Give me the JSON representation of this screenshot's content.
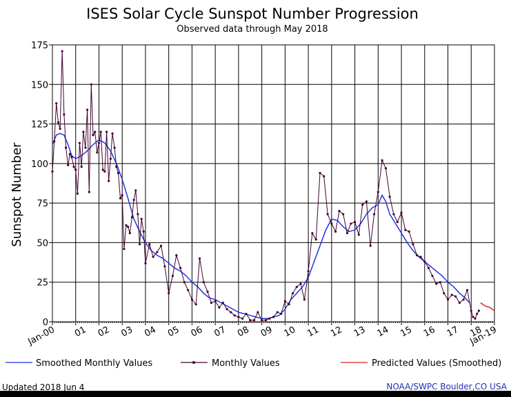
{
  "chart_data": {
    "type": "line",
    "title": "ISES Solar Cycle Sunspot Number Progression",
    "subtitle": "Observed data through May 2018",
    "ylabel": "Sunspot Number",
    "xlabel": "",
    "ylim": [
      0,
      175
    ],
    "xlim": [
      2000.0,
      2019.0
    ],
    "y_ticks": [
      0,
      25,
      50,
      75,
      100,
      125,
      150,
      175
    ],
    "x_tick_labels": [
      {
        "x": 2000,
        "label": "Jan-00"
      },
      {
        "x": 2001,
        "label": "01"
      },
      {
        "x": 2002,
        "label": "02"
      },
      {
        "x": 2003,
        "label": "03"
      },
      {
        "x": 2004,
        "label": "04"
      },
      {
        "x": 2005,
        "label": "05"
      },
      {
        "x": 2006,
        "label": "06"
      },
      {
        "x": 2007,
        "label": "07"
      },
      {
        "x": 2008,
        "label": "08"
      },
      {
        "x": 2009,
        "label": "09"
      },
      {
        "x": 2010,
        "label": "10"
      },
      {
        "x": 2011,
        "label": "11"
      },
      {
        "x": 2012,
        "label": "12"
      },
      {
        "x": 2013,
        "label": "13"
      },
      {
        "x": 2014,
        "label": "14"
      },
      {
        "x": 2015,
        "label": "15"
      },
      {
        "x": 2016,
        "label": "16"
      },
      {
        "x": 2017,
        "label": "17"
      },
      {
        "x": 2018,
        "label": "18"
      },
      {
        "x": 2019,
        "label": "Jan-19"
      }
    ],
    "grid": true,
    "legend_position": "bottom",
    "series": [
      {
        "name": "Monthly Values",
        "color": "#400030",
        "marker": "dot",
        "x": [
          2000.0,
          2000.08,
          2000.17,
          2000.25,
          2000.33,
          2000.42,
          2000.5,
          2000.58,
          2000.67,
          2000.75,
          2000.83,
          2000.92,
          2001.0,
          2001.08,
          2001.17,
          2001.25,
          2001.33,
          2001.42,
          2001.5,
          2001.58,
          2001.67,
          2001.75,
          2001.83,
          2001.92,
          2002.0,
          2002.08,
          2002.17,
          2002.25,
          2002.33,
          2002.42,
          2002.5,
          2002.58,
          2002.67,
          2002.75,
          2002.83,
          2002.92,
          2003.0,
          2003.08,
          2003.17,
          2003.25,
          2003.33,
          2003.42,
          2003.5,
          2003.58,
          2003.67,
          2003.75,
          2003.83,
          2003.92,
          2004.0,
          2004.17,
          2004.33,
          2004.5,
          2004.67,
          2004.83,
          2005.0,
          2005.17,
          2005.33,
          2005.5,
          2005.67,
          2005.83,
          2006.0,
          2006.17,
          2006.33,
          2006.5,
          2006.67,
          2006.83,
          2007.0,
          2007.17,
          2007.33,
          2007.5,
          2007.67,
          2007.83,
          2008.0,
          2008.17,
          2008.33,
          2008.5,
          2008.67,
          2008.83,
          2009.0,
          2009.17,
          2009.33,
          2009.5,
          2009.67,
          2009.83,
          2010.0,
          2010.17,
          2010.33,
          2010.5,
          2010.67,
          2010.83,
          2011.0,
          2011.17,
          2011.33,
          2011.5,
          2011.67,
          2011.83,
          2012.0,
          2012.17,
          2012.33,
          2012.5,
          2012.67,
          2012.83,
          2013.0,
          2013.17,
          2013.33,
          2013.5,
          2013.67,
          2013.83,
          2014.0,
          2014.17,
          2014.33,
          2014.5,
          2014.67,
          2014.83,
          2015.0,
          2015.17,
          2015.33,
          2015.5,
          2015.67,
          2015.83,
          2016.0,
          2016.17,
          2016.33,
          2016.5,
          2016.67,
          2016.83,
          2017.0,
          2017.17,
          2017.33,
          2017.5,
          2017.67,
          2017.83,
          2018.0,
          2018.08,
          2018.17,
          2018.25,
          2018.33
        ],
        "values": [
          95,
          114,
          138,
          126,
          122,
          171,
          131,
          110,
          99,
          106,
          104,
          98,
          96,
          81,
          113,
          98,
          120,
          110,
          134,
          82,
          150,
          118,
          120,
          107,
          113,
          120,
          96,
          95,
          120,
          89,
          103,
          119,
          110,
          98,
          94,
          78,
          80,
          46,
          61,
          60,
          56,
          66,
          77,
          83,
          68,
          49,
          65,
          57,
          37,
          49,
          41,
          44,
          48,
          35,
          18,
          29,
          42,
          34,
          25,
          20,
          14,
          11,
          40,
          25,
          19,
          12,
          13,
          9,
          12,
          8,
          6,
          4,
          3,
          2,
          5,
          1,
          1,
          6,
          1,
          1,
          2,
          3,
          6,
          5,
          13,
          11,
          18,
          22,
          24,
          14,
          32,
          56,
          52,
          94,
          92,
          68,
          62,
          57,
          70,
          68,
          56,
          62,
          63,
          55,
          74,
          76,
          48,
          68,
          82,
          102,
          97,
          79,
          68,
          63,
          69,
          58,
          57,
          49,
          42,
          41,
          38,
          34,
          29,
          24,
          25,
          18,
          14,
          17,
          16,
          12,
          14,
          20,
          7,
          3,
          2,
          5,
          7
        ]
      },
      {
        "name": "Smoothed Monthly Values",
        "color": "#2233dd",
        "x": [
          2000.0,
          2000.17,
          2000.33,
          2000.5,
          2000.67,
          2000.83,
          2001.0,
          2001.25,
          2001.5,
          2001.75,
          2002.0,
          2002.25,
          2002.5,
          2002.75,
          2003.0,
          2003.25,
          2003.5,
          2003.75,
          2004.0,
          2004.25,
          2004.5,
          2004.75,
          2005.0,
          2005.25,
          2005.5,
          2005.75,
          2006.0,
          2006.25,
          2006.5,
          2006.75,
          2007.0,
          2007.25,
          2007.5,
          2007.75,
          2008.0,
          2008.25,
          2008.5,
          2008.75,
          2009.0,
          2009.25,
          2009.5,
          2009.75,
          2010.0,
          2010.25,
          2010.5,
          2010.75,
          2011.0,
          2011.25,
          2011.5,
          2011.75,
          2012.0,
          2012.25,
          2012.5,
          2012.75,
          2013.0,
          2013.25,
          2013.5,
          2013.75,
          2014.0,
          2014.17,
          2014.33,
          2014.5,
          2014.75,
          2015.0,
          2015.25,
          2015.5,
          2015.75,
          2016.0,
          2016.25,
          2016.5,
          2016.75,
          2017.0,
          2017.25,
          2017.5,
          2017.75,
          2017.92
        ],
        "values": [
          112,
          118,
          119,
          118,
          112,
          105,
          103,
          105,
          108,
          112,
          115,
          113,
          108,
          100,
          90,
          78,
          65,
          57,
          50,
          45,
          42,
          40,
          37,
          34,
          32,
          29,
          25,
          22,
          18,
          15,
          14,
          12,
          10,
          8,
          6,
          5,
          4,
          3,
          2,
          2,
          3,
          4,
          8,
          14,
          18,
          22,
          28,
          38,
          48,
          58,
          65,
          64,
          60,
          57,
          58,
          62,
          68,
          72,
          74,
          80,
          76,
          68,
          62,
          56,
          50,
          45,
          41,
          38,
          35,
          32,
          29,
          25,
          22,
          18,
          15,
          12
        ]
      },
      {
        "name": "Predicted Values (Smoothed)",
        "color": "#dd2222",
        "x": [
          2018.4,
          2018.6,
          2018.8,
          2019.0
        ],
        "values": [
          12,
          10,
          9,
          7
        ]
      }
    ]
  },
  "legend": {
    "smoothed_label": "Smoothed Monthly Values",
    "monthly_label": "Monthly Values",
    "predicted_label": "Predicted Values (Smoothed)"
  },
  "footer": {
    "updated": "Updated 2018 Jun  4",
    "source": "NOAA/SWPC Boulder,CO USA"
  },
  "colors": {
    "monthly": "#400030",
    "smoothed": "#2233dd",
    "predicted": "#dd2222",
    "source_text": "#1a2fb5"
  }
}
